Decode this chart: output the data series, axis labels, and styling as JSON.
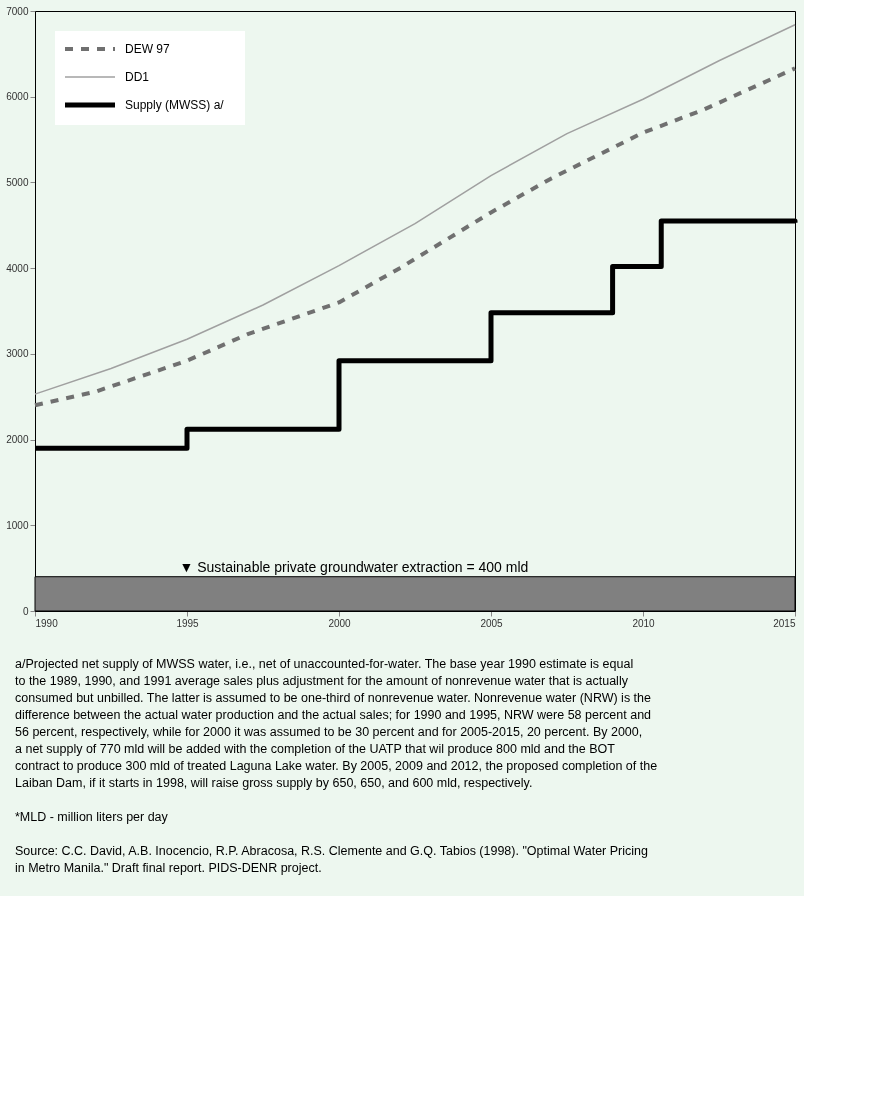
{
  "chart_data": {
    "type": "line",
    "x": [
      1990,
      1992.5,
      1995,
      1997.5,
      2000,
      2002.5,
      2005,
      2007.5,
      2010,
      2012.5,
      2015
    ],
    "series": [
      {
        "name": "DEW 97",
        "color": "#707070",
        "line_style": "dashed",
        "x": [
          1990,
          1992,
          1995,
          1997,
          2000,
          2002,
          2005,
          2007,
          2010,
          2012,
          2015
        ],
        "values": [
          2400,
          2560,
          2920,
          3230,
          3600,
          4000,
          4650,
          5050,
          5580,
          5850,
          6330
        ]
      },
      {
        "name": "DD1",
        "color": "#a0a0a0",
        "line_style": "solid",
        "values": [
          2530,
          2830,
          3170,
          3570,
          4030,
          4520,
          5080,
          5570,
          5970,
          6420,
          6840
        ]
      },
      {
        "name": "Supply (MWSS) a/",
        "type": "step",
        "color": "#000000",
        "line_style": "solid",
        "x": [
          1990,
          1995,
          2000,
          2005,
          2009,
          2010.6,
          2015
        ],
        "values": [
          1900,
          2120,
          2920,
          3480,
          4020,
          4550,
          4530
        ]
      }
    ],
    "xlim": [
      1990,
      2015
    ],
    "xticks": [
      1990,
      1995,
      2000,
      2005,
      2010,
      2015
    ],
    "ylim": [
      0,
      7000
    ],
    "yticks": [
      0,
      1000,
      2000,
      3000,
      4000,
      5000,
      6000,
      7000
    ],
    "grid": false,
    "legend": "top left",
    "marker": "none",
    "bands": [
      {
        "axis": "y",
        "from": 0,
        "to": 400,
        "label": "▼ Sustainable private groundwater extraction = 400 mld",
        "color": "#808080"
      }
    ],
    "annotations": [
      "a/Projected net supply of MWSS water, i.e., net of unaccounted-for-water. The base year 1990 estimate is equal to the 1989, 1990, and 1991 average sales plus adjustment for the amount of nonrevenue water that is actually consumed but unbilled. The latter is assumed to be one-third of nonrevenue water. Nonrevenue water (NRW) is the difference between the actual water production and the actual sales; for 1990 and 1995, NRW were 58 percent and 56 percent, respectively, while for 2000 it was assumed to be 30 percent and for 2005-2015, 20 percent. By 2000, a net supply of 770 mld will be added with the completion of the UATP that wil produce 800 mld and the BOT contract to produce 300 mld of treated Laguna Lake water. By 2005, 2009 and 2012, the proposed completion of the Laiban Dam, if it starts in 1998, will raise gross supply by 650, 650, and 600 mld, respectively.",
      "*MLD - million liters per day",
      "Source: C.C. David, A.B. Inocencio, R.P. Abracosa, R.S. Clemente and G.Q. Tabios (1998). \"Optimal Water Pricing in Metro Manila.\" Draft final report. PIDS-DENR project."
    ]
  }
}
